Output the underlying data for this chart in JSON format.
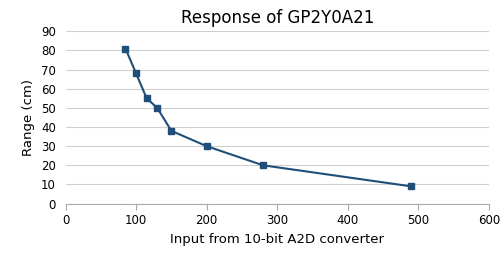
{
  "title": "Response of GP2Y0A21",
  "xlabel": "Input from 10-bit A2D converter",
  "ylabel": "Range (cm)",
  "x": [
    85,
    100,
    115,
    130,
    150,
    200,
    280,
    490
  ],
  "y": [
    81,
    68,
    55,
    50,
    38,
    30,
    20,
    9
  ],
  "line_color": "#1F4E79",
  "marker": "s",
  "marker_size": 4,
  "xlim": [
    0,
    600
  ],
  "ylim": [
    0,
    90
  ],
  "xticks": [
    0,
    100,
    200,
    300,
    400,
    500,
    600
  ],
  "yticks": [
    0,
    10,
    20,
    30,
    40,
    50,
    60,
    70,
    80,
    90
  ],
  "background_color": "#ffffff",
  "grid_color": "#d0d0d0",
  "title_fontsize": 12,
  "label_fontsize": 9.5
}
